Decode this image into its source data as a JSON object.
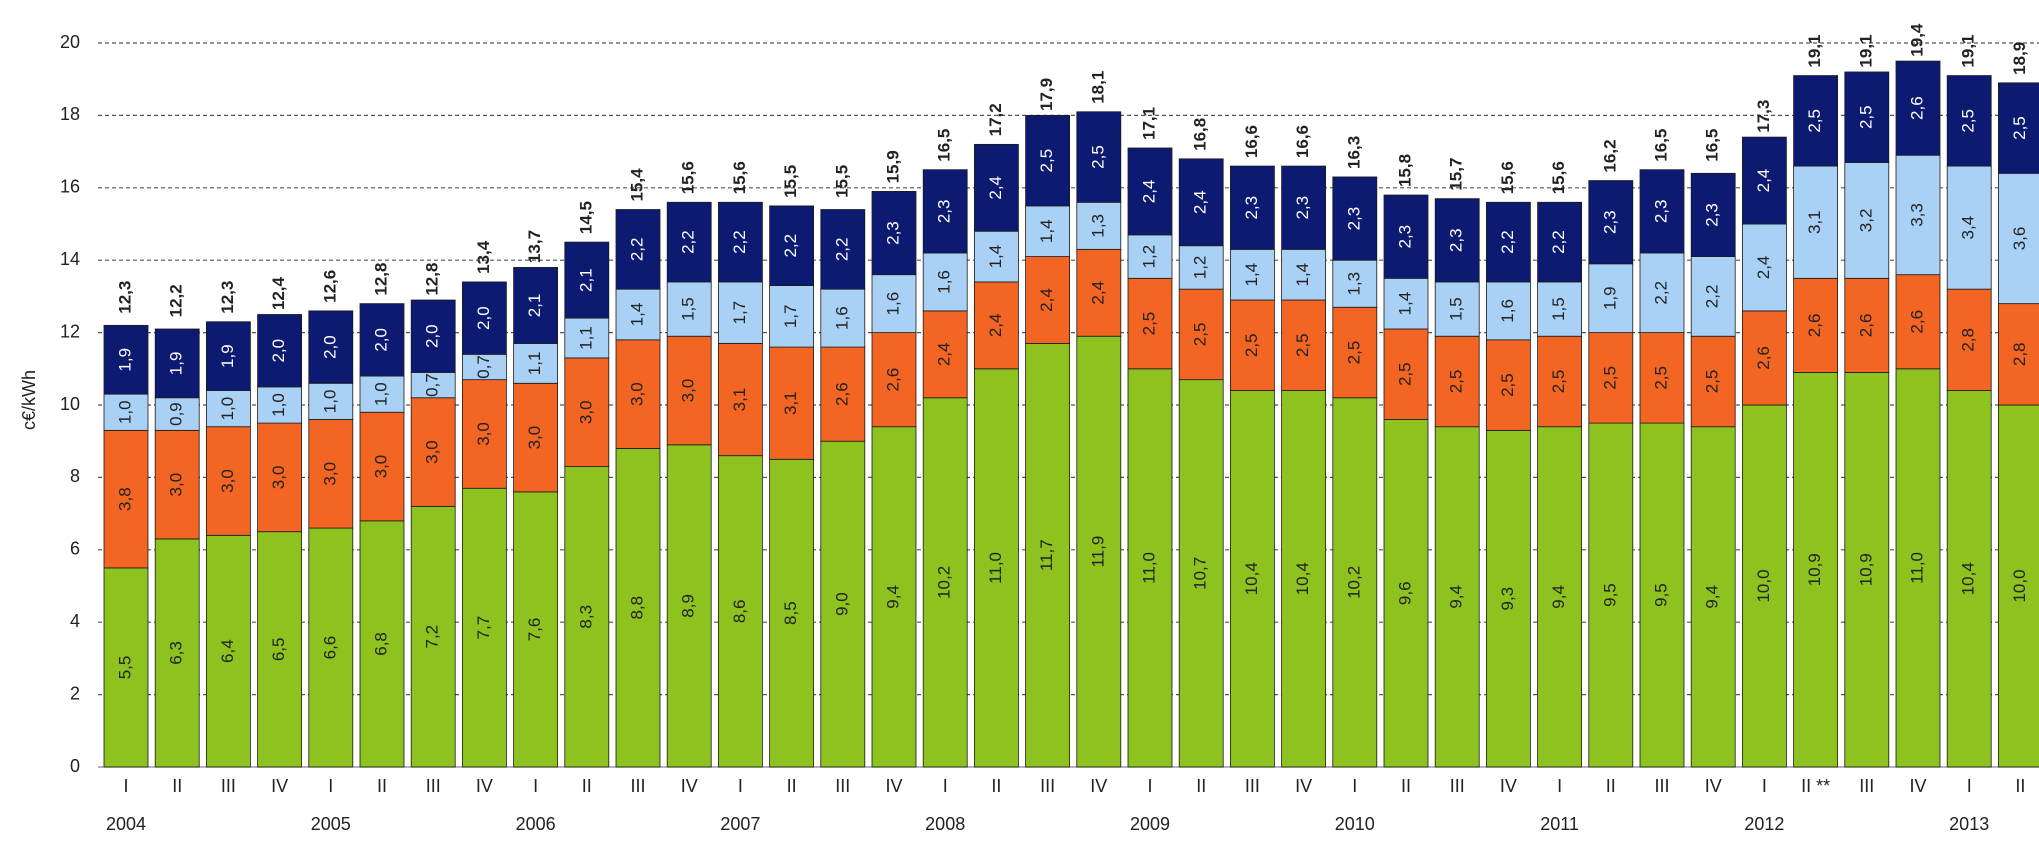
{
  "chart_data": {
    "type": "stacked_bar",
    "y_label": "c€/kWh",
    "categories": [
      "I",
      "II",
      "III",
      "IV",
      "I",
      "II",
      "III",
      "IV",
      "I",
      "II",
      "III",
      "IV",
      "I",
      "II",
      "III",
      "IV",
      "I",
      "II",
      "III",
      "IV",
      "I",
      "II",
      "III",
      "IV",
      "I",
      "II",
      "III",
      "IV",
      "I",
      "II",
      "III",
      "IV",
      "I",
      "II **",
      "III",
      "IV",
      "I",
      "II"
    ],
    "years": [
      "2004",
      null,
      null,
      null,
      "2005",
      null,
      null,
      null,
      "2006",
      null,
      null,
      null,
      "2007",
      null,
      null,
      null,
      "2008",
      null,
      null,
      null,
      "2009",
      null,
      null,
      null,
      "2010",
      null,
      null,
      null,
      "2011",
      null,
      null,
      null,
      "2012",
      null,
      null,
      null,
      "2013",
      null
    ],
    "series": [
      {
        "color": "#8dc21f",
        "values": [
          5.5,
          6.3,
          6.4,
          6.5,
          6.6,
          6.8,
          7.2,
          7.7,
          7.6,
          8.3,
          8.8,
          8.9,
          8.6,
          8.5,
          9.0,
          9.4,
          10.2,
          11.0,
          11.7,
          11.9,
          11.0,
          10.7,
          10.4,
          10.4,
          10.2,
          9.6,
          9.4,
          9.3,
          9.4,
          9.5,
          9.5,
          9.4,
          10.0,
          10.9,
          10.9,
          11.0,
          10.4,
          10.0
        ],
        "value_labels": [
          "5,5",
          "6,3",
          "6,4",
          "6,5",
          "6,6",
          "6,8",
          "7,2",
          "7,7",
          "7,6",
          "8,3",
          "8,8",
          "8,9",
          "8,6",
          "8,5",
          "9,0",
          "9,4",
          "10,2",
          "11,0",
          "11,7",
          "11,9",
          "11,0",
          "10,7",
          "10,4",
          "10,4",
          "10,2",
          "9,6",
          "9,4",
          "9,3",
          "9,4",
          "9,5",
          "9,5",
          "9,4",
          "10,0",
          "10,9",
          "10,9",
          "11,0",
          "10,4",
          "10,0"
        ]
      },
      {
        "color": "#f26522",
        "values": [
          3.8,
          3.0,
          3.0,
          3.0,
          3.0,
          3.0,
          3.0,
          3.0,
          3.0,
          3.0,
          3.0,
          3.0,
          3.1,
          3.1,
          2.6,
          2.6,
          2.4,
          2.4,
          2.4,
          2.4,
          2.5,
          2.5,
          2.5,
          2.5,
          2.5,
          2.5,
          2.5,
          2.5,
          2.5,
          2.5,
          2.5,
          2.5,
          2.6,
          2.6,
          2.6,
          2.6,
          2.8,
          2.8
        ],
        "value_labels": [
          "3,8",
          "3,0",
          "3,0",
          "3,0",
          "3,0",
          "3,0",
          "3,0",
          "3,0",
          "3,0",
          "3,0",
          "3,0",
          "3,0",
          "3,1",
          "3,1",
          "2,6",
          "2,6",
          "2,4",
          "2,4",
          "2,4",
          "2,4",
          "2,5",
          "2,5",
          "2,5",
          "2,5",
          "2,5",
          "2,5",
          "2,5",
          "2,5",
          "2,5",
          "2,5",
          "2,5",
          "2,5",
          "2,6",
          "2,6",
          "2,6",
          "2,6",
          "2,8",
          "2,8"
        ]
      },
      {
        "color": "#a9d0f5",
        "values": [
          1.0,
          0.9,
          1.0,
          1.0,
          1.0,
          1.0,
          0.7,
          0.7,
          1.1,
          1.1,
          1.4,
          1.5,
          1.7,
          1.7,
          1.6,
          1.6,
          1.6,
          1.4,
          1.4,
          1.3,
          1.2,
          1.2,
          1.4,
          1.4,
          1.3,
          1.4,
          1.5,
          1.6,
          1.5,
          1.9,
          2.2,
          2.2,
          2.4,
          3.1,
          3.2,
          3.3,
          3.4,
          3.6
        ],
        "value_labels": [
          "1,0",
          "0,9",
          "1,0",
          "1,0",
          "1,0",
          "1,0",
          "0,7",
          "0,7",
          "1,1",
          "1,1",
          "1,4",
          "1,5",
          "1,7",
          "1,7",
          "1,6",
          "1,6",
          "1,6",
          "1,4",
          "1,4",
          "1,3",
          "1,2",
          "1,2",
          "1,4",
          "1,4",
          "1,3",
          "1,4",
          "1,5",
          "1,6",
          "1,5",
          "1,9",
          "2,2",
          "2,2",
          "2,4",
          "3,1",
          "3,2",
          "3,3",
          "3,4",
          "3,6"
        ]
      },
      {
        "color": "#0d1a72",
        "values": [
          1.9,
          1.9,
          1.9,
          2.0,
          2.0,
          2.0,
          2.0,
          2.0,
          2.1,
          2.1,
          2.2,
          2.2,
          2.2,
          2.2,
          2.2,
          2.3,
          2.3,
          2.4,
          2.5,
          2.5,
          2.4,
          2.4,
          2.3,
          2.3,
          2.3,
          2.3,
          2.3,
          2.2,
          2.2,
          2.3,
          2.3,
          2.3,
          2.4,
          2.5,
          2.5,
          2.6,
          2.5,
          2.5
        ],
        "value_labels": [
          "1,9",
          "1,9",
          "1,9",
          "2,0",
          "2,0",
          "2,0",
          "2,0",
          "2,0",
          "2,1",
          "2,1",
          "2,2",
          "2,2",
          "2,2",
          "2,2",
          "2,2",
          "2,3",
          "2,3",
          "2,4",
          "2,5",
          "2,5",
          "2,4",
          "2,4",
          "2,3",
          "2,3",
          "2,3",
          "2,3",
          "2,3",
          "2,2",
          "2,2",
          "2,3",
          "2,3",
          "2,3",
          "2,4",
          "2,5",
          "2,5",
          "2,6",
          "2,5",
          "2,5"
        ]
      }
    ],
    "totals": {
      "values": [
        12.3,
        12.2,
        12.3,
        12.4,
        12.6,
        12.8,
        12.8,
        13.4,
        13.7,
        14.5,
        15.4,
        15.6,
        15.6,
        15.5,
        15.5,
        15.9,
        16.5,
        17.2,
        17.9,
        18.1,
        17.1,
        16.8,
        16.6,
        16.6,
        16.3,
        15.8,
        15.7,
        15.6,
        15.6,
        16.2,
        16.5,
        16.5,
        17.3,
        19.1,
        19.1,
        19.4,
        19.1,
        18.9
      ],
      "value_labels": [
        "12,3",
        "12,2",
        "12,3",
        "12,4",
        "12,6",
        "12,8",
        "12,8",
        "13,4",
        "13,7",
        "14,5",
        "15,4",
        "15,6",
        "15,6",
        "15,5",
        "15,5",
        "15,9",
        "16,5",
        "17,2",
        "17,9",
        "18,1",
        "17,1",
        "16,8",
        "16,6",
        "16,6",
        "16,3",
        "15,8",
        "15,7",
        "15,6",
        "15,6",
        "16,2",
        "16,5",
        "16,5",
        "17,3",
        "19,1",
        "19,1",
        "19,4",
        "19,1",
        "18,9"
      ]
    },
    "ylim": [
      0,
      20
    ],
    "yticks": [
      0,
      2,
      4,
      6,
      8,
      10,
      12,
      14,
      16,
      18,
      20
    ],
    "grid": true
  }
}
